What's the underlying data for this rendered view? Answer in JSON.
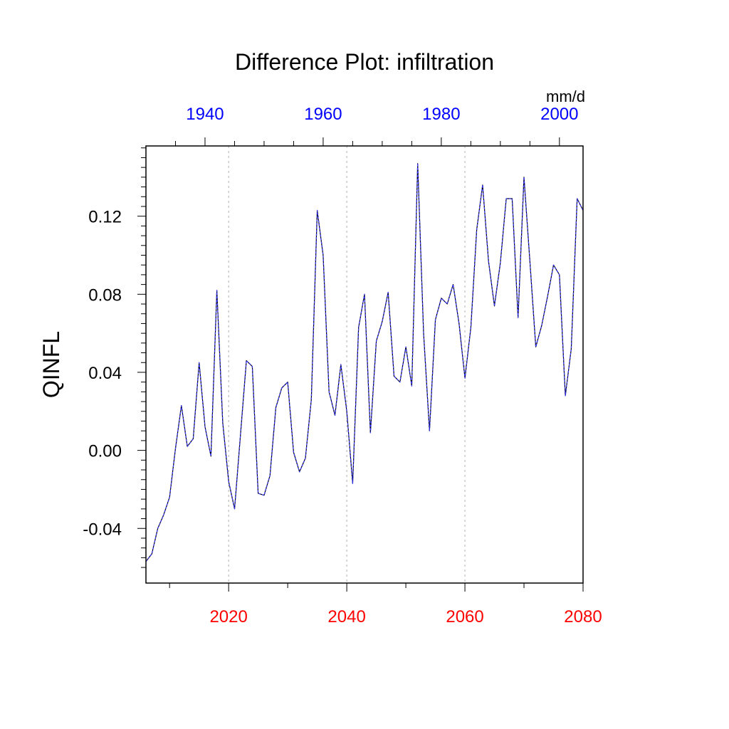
{
  "chart_data": {
    "type": "line",
    "title": "Difference Plot: infiltration",
    "ylabel": "QINFL",
    "units": "mm/d",
    "xlim": [
      2006,
      2080
    ],
    "xlim_top": [
      1930,
      2004
    ],
    "ylim": [
      -0.068,
      0.156
    ],
    "grid": "vertical dashed at bottom-axis major ticks",
    "x_ticks_bottom": [
      2020,
      2040,
      2060,
      2080
    ],
    "x_tick_labels_bottom": [
      "2020",
      "2040",
      "2060",
      "2080"
    ],
    "x_ticks_top": [
      1940,
      1960,
      1980,
      2000
    ],
    "x_tick_labels_top": [
      "1940",
      "1960",
      "1980",
      "2000"
    ],
    "y_ticks": [
      -0.04,
      0.0,
      0.04,
      0.08,
      0.12
    ],
    "y_tick_labels": [
      "-0.04",
      "0.00",
      "0.04",
      "0.08",
      "0.12"
    ],
    "colors": {
      "bottom_axis": "#ff0000",
      "top_axis": "#0000ff",
      "line": "#000000",
      "line_overlay": "#3333ff",
      "grid": "#b0b0b0"
    },
    "series": [
      {
        "name": "QINFL difference",
        "x": [
          2006,
          2007,
          2008,
          2009,
          2010,
          2011,
          2012,
          2013,
          2014,
          2015,
          2016,
          2017,
          2018,
          2019,
          2020,
          2021,
          2022,
          2023,
          2024,
          2025,
          2026,
          2027,
          2028,
          2029,
          2030,
          2031,
          2032,
          2033,
          2034,
          2035,
          2036,
          2037,
          2038,
          2039,
          2040,
          2041,
          2042,
          2043,
          2044,
          2045,
          2046,
          2047,
          2048,
          2049,
          2050,
          2051,
          2052,
          2053,
          2054,
          2055,
          2056,
          2057,
          2058,
          2059,
          2060,
          2061,
          2062,
          2063,
          2064,
          2065,
          2066,
          2067,
          2068,
          2069,
          2070,
          2071,
          2072,
          2073,
          2074,
          2075,
          2076,
          2077,
          2078,
          2079,
          2080
        ],
        "values": [
          -0.057,
          -0.053,
          -0.04,
          -0.033,
          -0.024,
          0.001,
          0.023,
          0.002,
          0.006,
          0.045,
          0.012,
          -0.003,
          0.082,
          0.014,
          -0.016,
          -0.03,
          0.008,
          0.046,
          0.043,
          -0.022,
          -0.023,
          -0.013,
          0.022,
          0.032,
          0.035,
          -0.001,
          -0.011,
          -0.004,
          0.026,
          0.123,
          0.1,
          0.03,
          0.018,
          0.044,
          0.02,
          -0.017,
          0.063,
          0.08,
          0.009,
          0.056,
          0.066,
          0.081,
          0.038,
          0.035,
          0.053,
          0.033,
          0.147,
          0.06,
          0.01,
          0.067,
          0.078,
          0.075,
          0.085,
          0.065,
          0.037,
          0.063,
          0.113,
          0.136,
          0.097,
          0.074,
          0.096,
          0.129,
          0.129,
          0.068,
          0.14,
          0.097,
          0.053,
          0.064,
          0.079,
          0.095,
          0.09,
          0.028,
          0.052,
          0.129,
          0.123
        ]
      }
    ]
  }
}
